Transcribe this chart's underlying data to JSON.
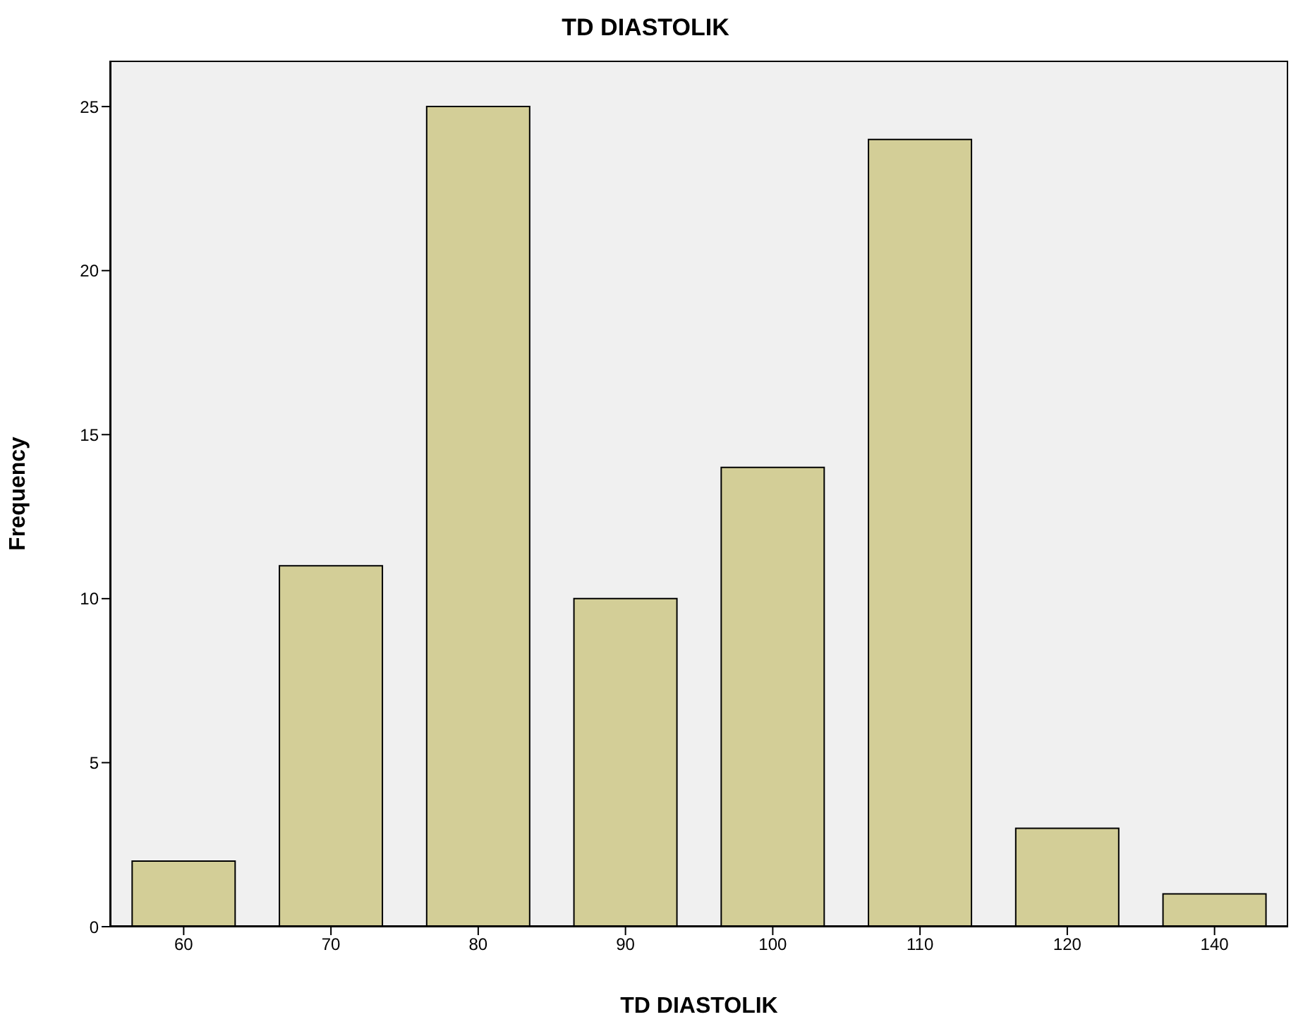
{
  "chart_data": {
    "type": "bar",
    "title": "TD DIASTOLIK",
    "xlabel": "TD DIASTOLIK",
    "ylabel": "Frequency",
    "categories": [
      "60",
      "70",
      "80",
      "90",
      "100",
      "110",
      "120",
      "140"
    ],
    "values": [
      2,
      11,
      25,
      10,
      14,
      24,
      3,
      1
    ],
    "color": "#d3ce97",
    "ylim": [
      0,
      26.4
    ],
    "yticks": [
      0,
      5,
      10,
      15,
      20,
      25
    ],
    "grid": false,
    "legend": false
  }
}
